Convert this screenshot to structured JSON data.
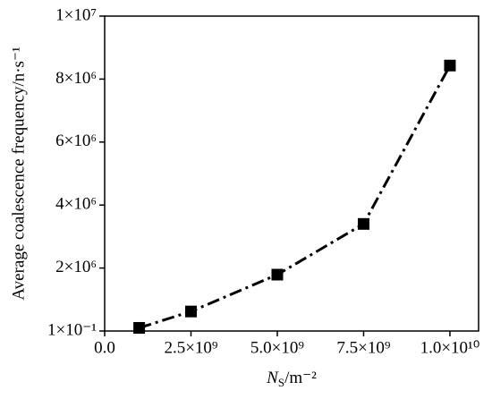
{
  "chart_data": {
    "type": "line",
    "x_label": {
      "symbol": "N",
      "subscript": "S",
      "unit": "/m⁻²"
    },
    "y_label": "Average coalescence frequency/n·s⁻¹",
    "x": [
      1000000000,
      2500000000,
      5000000000,
      7500000000,
      10000000000
    ],
    "series": [
      {
        "color": "#000000",
        "values": [
          100000,
          620000,
          1790000,
          3400000,
          8430000
        ]
      }
    ],
    "xlim": [
      0,
      10830000000
    ],
    "ylim": [
      0.1,
      10000000
    ],
    "xticks": [
      {
        "value": 0,
        "label": "0.0"
      },
      {
        "value": 2500000000,
        "label": "2.5×10⁹"
      },
      {
        "value": 5000000000,
        "label": "5.0×10⁹"
      },
      {
        "value": 7500000000,
        "label": "7.5×10⁹"
      },
      {
        "value": 10000000000,
        "label": "1.0×10¹⁰"
      }
    ],
    "yticks": [
      {
        "value": 0.1,
        "label": "1×10⁻¹"
      },
      {
        "value": 2000000,
        "label": "2×10⁶"
      },
      {
        "value": 4000000,
        "label": "4×10⁶"
      },
      {
        "value": 6000000,
        "label": "6×10⁶"
      },
      {
        "value": 8000000,
        "label": "8×10⁶"
      },
      {
        "value": 10000000,
        "label": "1×10⁷"
      }
    ]
  }
}
